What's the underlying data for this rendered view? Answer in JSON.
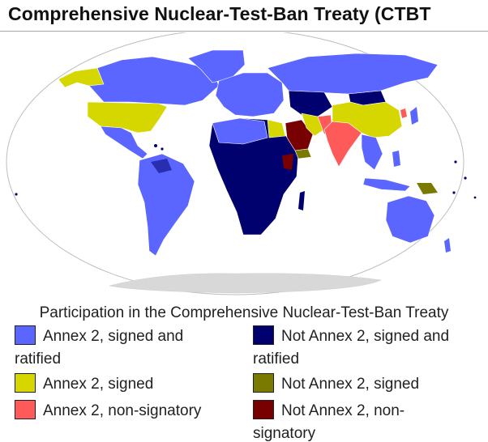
{
  "title": "Comprehensive Nuclear-Test-Ban Treaty (CTBT",
  "legend": {
    "caption": "Participation in the Comprehensive Nuclear-Test-Ban Treaty",
    "items": [
      {
        "label": "Annex 2, signed and ratified",
        "color": "#5a66ff"
      },
      {
        "label": "Not Annex 2, signed and ratified",
        "color": "#00006e"
      },
      {
        "label": "Annex 2, signed",
        "color": "#d6d600"
      },
      {
        "label": "Not Annex 2, signed",
        "color": "#7a7a00"
      },
      {
        "label": "Annex 2, non-signatory",
        "color": "#ff5a5a"
      },
      {
        "label": "Not Annex 2, non-signatory",
        "color": "#780000"
      }
    ]
  },
  "map": {
    "ocean_color": "#ffffff",
    "border_color": "#bdbdbd",
    "antarctica_color": "#d8d8d8",
    "regions": [
      {
        "name": "Alaska",
        "status": "Annex 2, signed"
      },
      {
        "name": "Canada",
        "status": "Annex 2, signed and ratified"
      },
      {
        "name": "Greenland",
        "status": "Annex 2, signed and ratified"
      },
      {
        "name": "United States",
        "status": "Annex 2, signed"
      },
      {
        "name": "Mexico and Central America",
        "status": "Annex 2, signed and ratified"
      },
      {
        "name": "South America",
        "status": "Annex 2, signed and ratified"
      },
      {
        "name": "Europe",
        "status": "Annex 2, signed and ratified"
      },
      {
        "name": "Russia",
        "status": "Annex 2, signed and ratified"
      },
      {
        "name": "Africa",
        "status": "Not Annex 2, signed and ratified"
      },
      {
        "name": "Egypt",
        "status": "Annex 2, signed"
      },
      {
        "name": "Saudi Arabia",
        "status": "Not Annex 2, non-signatory"
      },
      {
        "name": "Yemen",
        "status": "Not Annex 2, signed"
      },
      {
        "name": "Iran",
        "status": "Annex 2, signed"
      },
      {
        "name": "Central Asia",
        "status": "Not Annex 2, signed and ratified"
      },
      {
        "name": "Pakistan",
        "status": "Annex 2, non-signatory"
      },
      {
        "name": "India",
        "status": "Annex 2, non-signatory"
      },
      {
        "name": "China",
        "status": "Annex 2, signed"
      },
      {
        "name": "Mongolia",
        "status": "Not Annex 2, signed and ratified"
      },
      {
        "name": "North Korea",
        "status": "Annex 2, non-signatory"
      },
      {
        "name": "Japan",
        "status": "Annex 2, signed and ratified"
      },
      {
        "name": "Southeast Asia",
        "status": "Annex 2, signed and ratified"
      },
      {
        "name": "Australia",
        "status": "Annex 2, signed and ratified"
      },
      {
        "name": "Papua New Guinea",
        "status": "Not Annex 2, signed"
      }
    ]
  }
}
